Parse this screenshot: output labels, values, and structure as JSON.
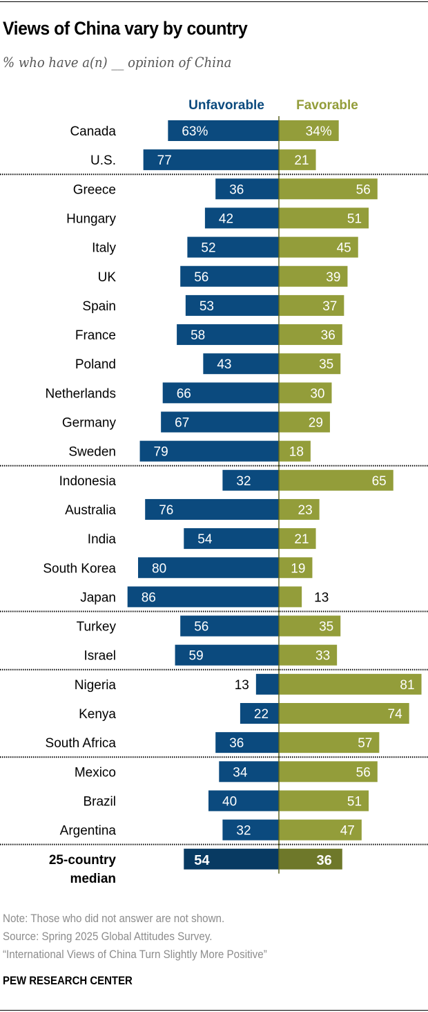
{
  "title": "Views of China vary by country",
  "subtitle": "% who have a(n) __ opinion of China",
  "chart_data": {
    "type": "bar",
    "orientation": "horizontal-diverging",
    "title": "Views of China vary by country",
    "subtitle": "% who have a(n) __ opinion of China",
    "categories": [
      "Canada",
      "U.S.",
      "Greece",
      "Hungary",
      "Italy",
      "UK",
      "Spain",
      "France",
      "Poland",
      "Netherlands",
      "Germany",
      "Sweden",
      "Indonesia",
      "Australia",
      "India",
      "South Korea",
      "Japan",
      "Turkey",
      "Israel",
      "Nigeria",
      "Kenya",
      "South Africa",
      "Mexico",
      "Brazil",
      "Argentina"
    ],
    "groups_end_after": [
      "U.S.",
      "Sweden",
      "Japan",
      "Israel",
      "South Africa",
      "Argentina"
    ],
    "series": [
      {
        "name": "Unfavorable",
        "color": "#0b4a7e",
        "values": [
          63,
          77,
          36,
          42,
          52,
          56,
          53,
          58,
          43,
          66,
          67,
          79,
          32,
          76,
          54,
          80,
          86,
          56,
          59,
          13,
          22,
          36,
          34,
          40,
          32
        ]
      },
      {
        "name": "Favorable",
        "color": "#939d3a",
        "values": [
          34,
          21,
          56,
          51,
          45,
          39,
          37,
          36,
          35,
          30,
          29,
          18,
          65,
          23,
          21,
          19,
          13,
          35,
          33,
          81,
          74,
          57,
          56,
          51,
          47
        ]
      }
    ],
    "first_row_suffix": "%",
    "median": {
      "label_line1": "25-country",
      "label_line2": "median",
      "unfavorable": 54,
      "favorable": 36,
      "unfavorable_color": "#083a62",
      "favorable_color": "#6e782a"
    },
    "legend_placement": "top"
  },
  "notes": {
    "note": "Note: Those who did not answer are not shown.",
    "source": "Source: Spring 2025 Global Attitudes Survey.",
    "report": "“International Views of China Turn Slightly More Positive”"
  },
  "brand": "PEW RESEARCH CENTER"
}
